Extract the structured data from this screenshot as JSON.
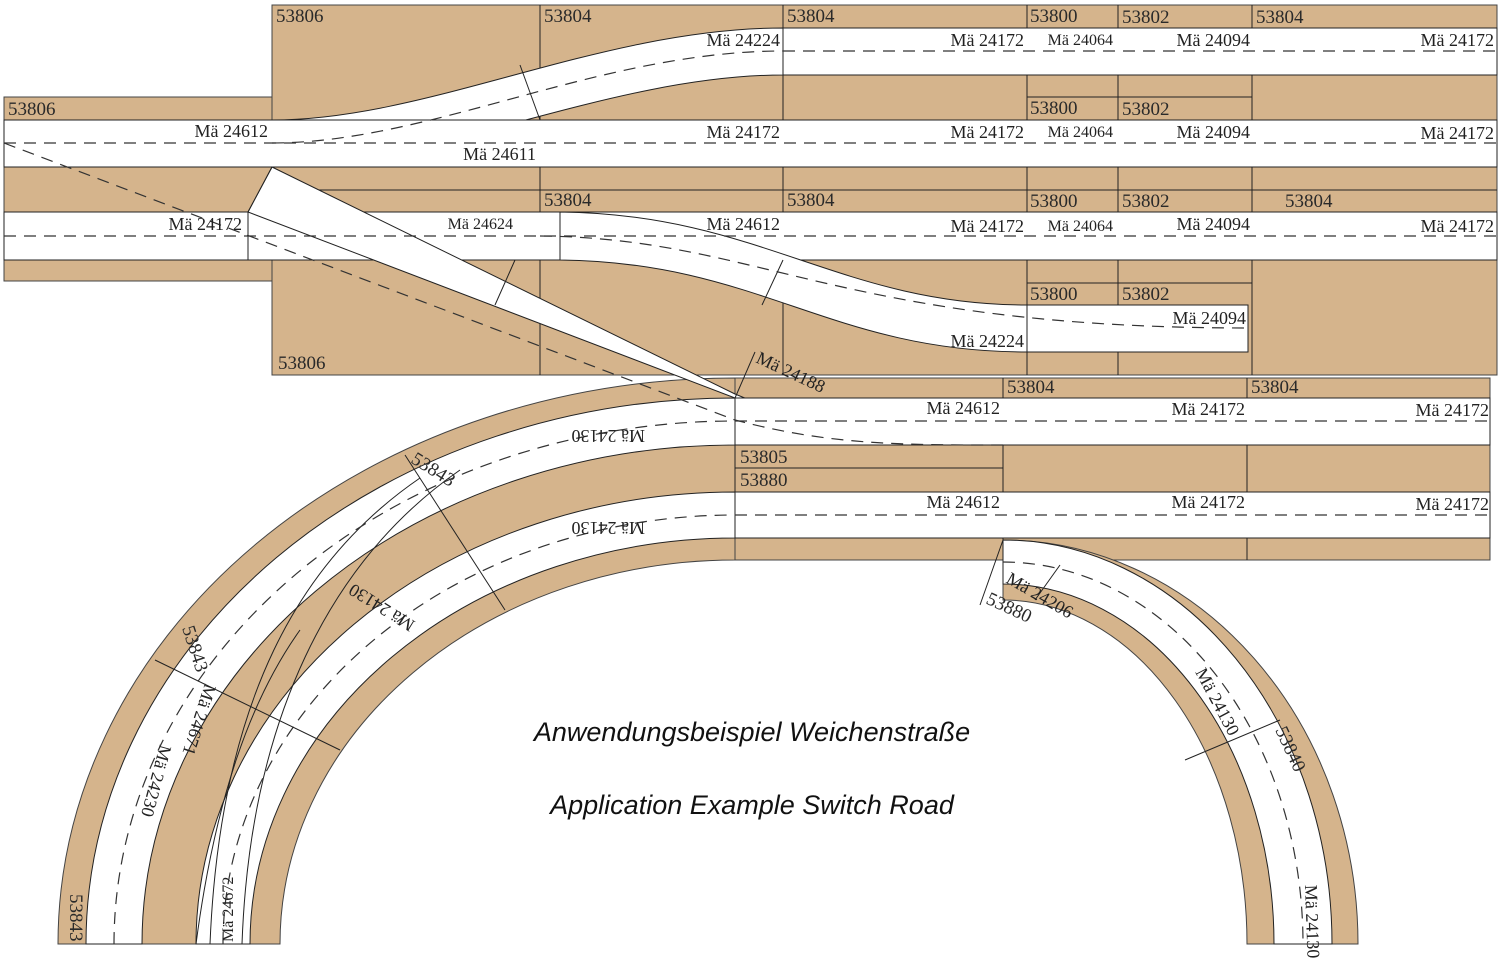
{
  "colors": {
    "baseplate": "#d5b48c",
    "track": "#ffffff",
    "outline": "#222222"
  },
  "module_labels": [
    "53806",
    "53804",
    "53804",
    "53800",
    "53802",
    "53804",
    "53806",
    "53800",
    "53802",
    "53804",
    "53804",
    "53800",
    "53802",
    "53804",
    "53800",
    "53802",
    "53806",
    "53804",
    "53804",
    "53805",
    "53880",
    "53843",
    "53843",
    "53843",
    "53880",
    "53840"
  ],
  "track_labels": [
    "Mä 24224",
    "Mä 24172",
    "Mä 24064",
    "Mä 24094",
    "Mä 24172",
    "Mä 24612",
    "Mä 24611",
    "Mä 24172",
    "Mä 24172",
    "Mä 24064",
    "Mä 24094",
    "Mä 24172",
    "Mä 24172",
    "Mä 24624",
    "Mä 24612",
    "Mä 24172",
    "Mä 24064",
    "Mä 24094",
    "Mä 24172",
    "Mä 24094",
    "Mä 24224",
    "Mä 24188",
    "Mä 24612",
    "Mä 24172",
    "Mä 24172",
    "Mä 24130",
    "Mä 24612",
    "Mä 24172",
    "Mä 24172",
    "Mä 24130",
    "Mä 24130",
    "Mä 24671",
    "Mä 24230",
    "Mä 24672",
    "Mä 24206",
    "Mä 24130",
    "Mä 24130"
  ],
  "caption": {
    "german": "Anwendungsbeispiel Weichenstraße",
    "english": "Application Example Switch Road"
  }
}
